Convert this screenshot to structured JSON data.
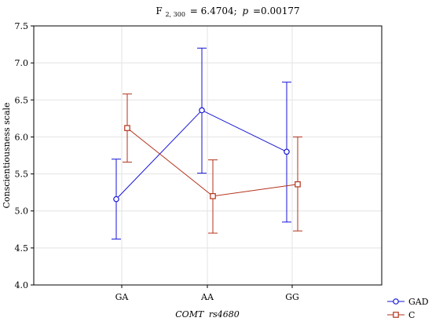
{
  "chart_data": {
    "type": "line",
    "title_stat": "F",
    "title_df": "2, 300",
    "title_value": "= 6.4704;",
    "title_p": "p",
    "title_p_value": "=0.00177",
    "xlabel": "COMTrs4680",
    "xlabel_gene": "COMT",
    "xlabel_snp": "rs4680",
    "ylabel": "Conscientiousness scale",
    "ylim": [
      4.0,
      7.5
    ],
    "yticks": [
      "4.0",
      "4.5",
      "5.0",
      "5.5",
      "6.0",
      "6.5",
      "7.0",
      "7.5"
    ],
    "ytick_values": [
      4.0,
      4.5,
      5.0,
      5.5,
      6.0,
      6.5,
      7.0,
      7.5
    ],
    "categories": [
      "GA",
      "AA",
      "GG"
    ],
    "grid": true,
    "legend_position": "bottom-right",
    "series": [
      {
        "name": "GAD",
        "color": "#1515d6",
        "marker": "circle",
        "values": [
          5.16,
          6.36,
          5.8
        ],
        "lower": [
          4.62,
          5.51,
          4.85
        ],
        "upper": [
          5.7,
          7.2,
          6.74
        ]
      },
      {
        "name": "C",
        "color": "#b3321b",
        "marker": "square",
        "values": [
          6.12,
          5.2,
          5.36
        ],
        "lower": [
          5.66,
          4.7,
          4.73
        ],
        "upper": [
          6.58,
          5.69,
          6.0
        ]
      }
    ]
  }
}
